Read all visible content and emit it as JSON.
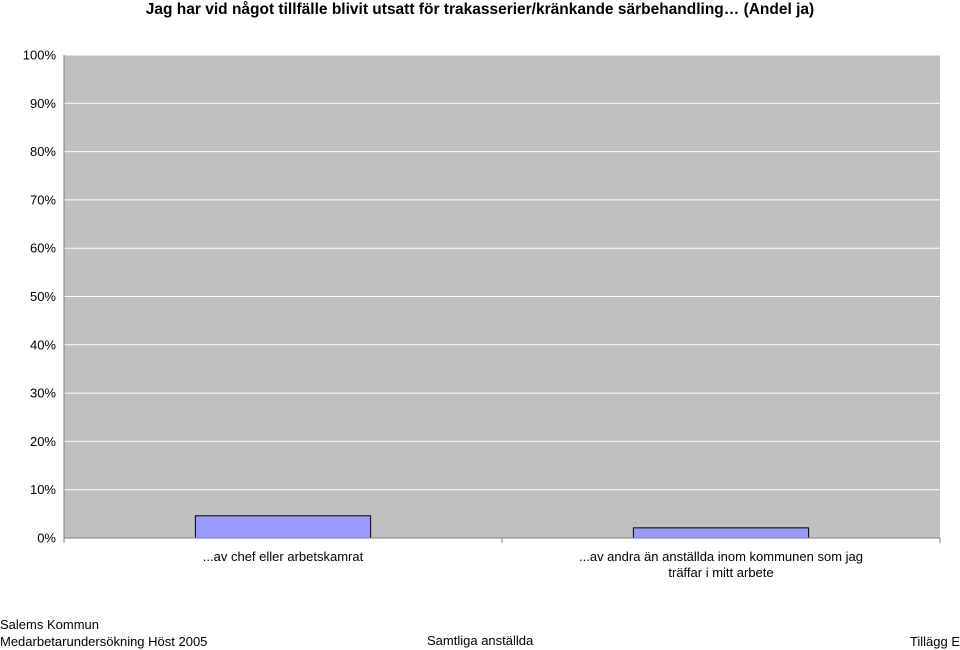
{
  "chart_data": {
    "type": "bar",
    "title": "Jag har vid något tillfälle blivit utsatt för trakasserier/kränkande särbehandling… (Andel ja)",
    "categories": [
      "...av chef eller arbetskamrat",
      "...av andra än anställda inom kommunen som jag träffar i mitt arbete"
    ],
    "values": [
      4.6,
      2.1
    ],
    "ylim": [
      0,
      100
    ],
    "yticks": [
      0,
      10,
      20,
      30,
      40,
      50,
      60,
      70,
      80,
      90,
      100
    ],
    "ytick_format": "%",
    "grid": true,
    "legend": "none",
    "colors": {
      "bar": "#9999ff",
      "plot_bg": "#c0c0c0",
      "grid": "#ffffff"
    }
  },
  "footer": {
    "org_line1": "Salems Kommun",
    "org_line2": "Medarbetarundersökning Höst 2005",
    "group": "Samtliga anställda",
    "appendix": "Tillägg E"
  }
}
